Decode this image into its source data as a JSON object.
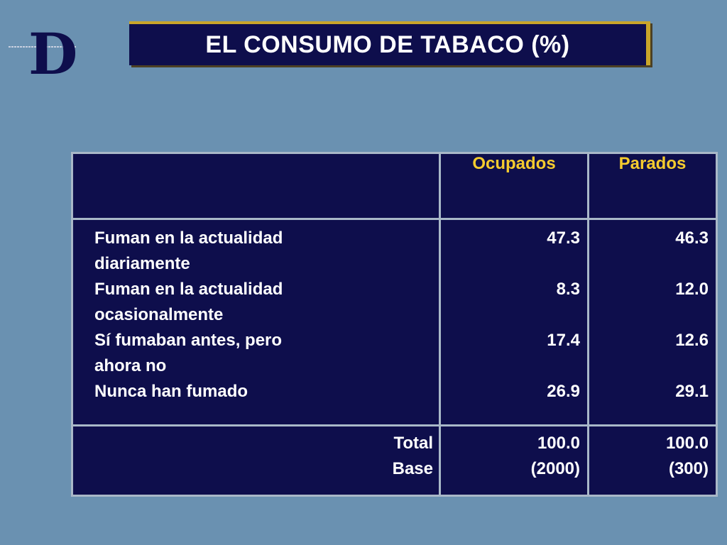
{
  "logo": {
    "letter": "D"
  },
  "title": "EL CONSUMO DE TABACO (%)",
  "table": {
    "columns": [
      "",
      "Ocupados",
      "Parados"
    ],
    "rows": [
      {
        "label": [
          "Fuman en la actualidad",
          "diariamente"
        ],
        "ocupados": "47.3",
        "parados": "46.3"
      },
      {
        "label": [
          "Fuman en la actualidad",
          "ocasionalmente"
        ],
        "ocupados": "8.3",
        "parados": "12.0"
      },
      {
        "label": [
          "Sí fumaban antes, pero",
          "ahora no"
        ],
        "ocupados": "17.4",
        "parados": "12.6"
      },
      {
        "label": [
          "Nunca han fumado"
        ],
        "ocupados": "26.9",
        "parados": "29.1"
      }
    ],
    "total": {
      "label": "Total",
      "ocupados": "100.0",
      "parados": "100.0"
    },
    "base": {
      "label": "Base",
      "ocupados": "(2000)",
      "parados": "(300)"
    }
  }
}
